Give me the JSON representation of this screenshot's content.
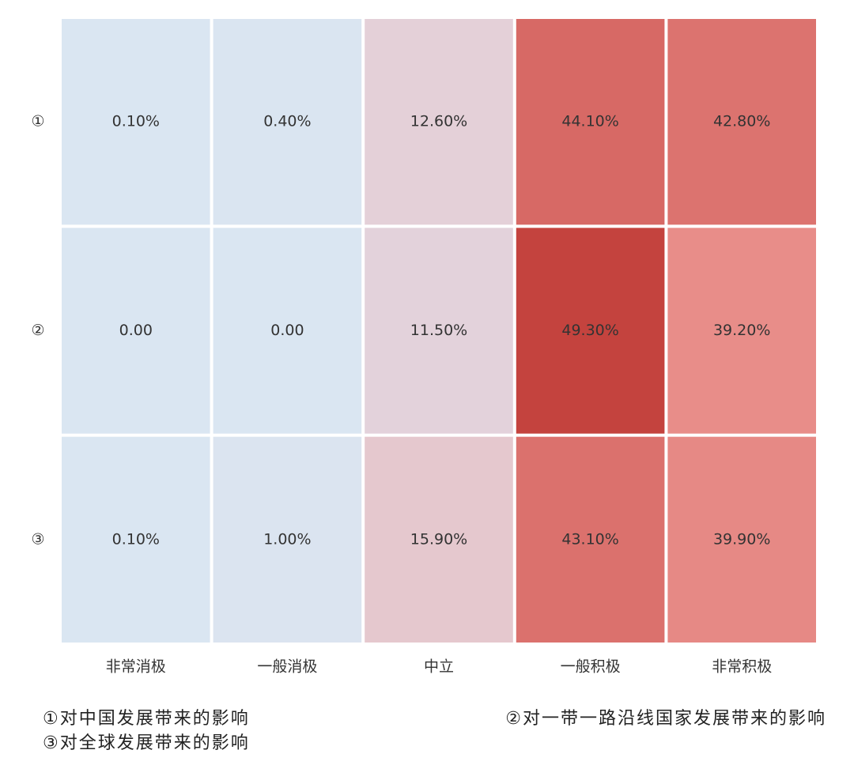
{
  "chart_data": {
    "type": "heatmap",
    "x_categories": [
      "非常消极",
      "一般消极",
      "中立",
      "一般积极",
      "非常积极"
    ],
    "y_categories": [
      "①",
      "②",
      "③"
    ],
    "values": [
      [
        0.1,
        0.4,
        12.6,
        44.1,
        42.8
      ],
      [
        0,
        0,
        11.5,
        49.3,
        39.2
      ],
      [
        0.1,
        1.0,
        15.9,
        43.1,
        39.9
      ]
    ],
    "value_labels": [
      [
        "0.10%",
        "0.40%",
        "12.60%",
        "44.10%",
        "42.80%"
      ],
      [
        "0.00",
        "0.00",
        "11.50%",
        "49.30%",
        "39.20%"
      ],
      [
        "0.10%",
        "1.00%",
        "15.90%",
        "43.10%",
        "39.90%"
      ]
    ],
    "colors": [
      "#dae6f2",
      "#e4d1d9",
      "#e88c88",
      "#c4433e"
    ],
    "notes": [
      "①对中国发展带来的影响",
      "②对一带一路沿线国家发展带来的影响",
      "③对全球发展带来的影响"
    ]
  }
}
